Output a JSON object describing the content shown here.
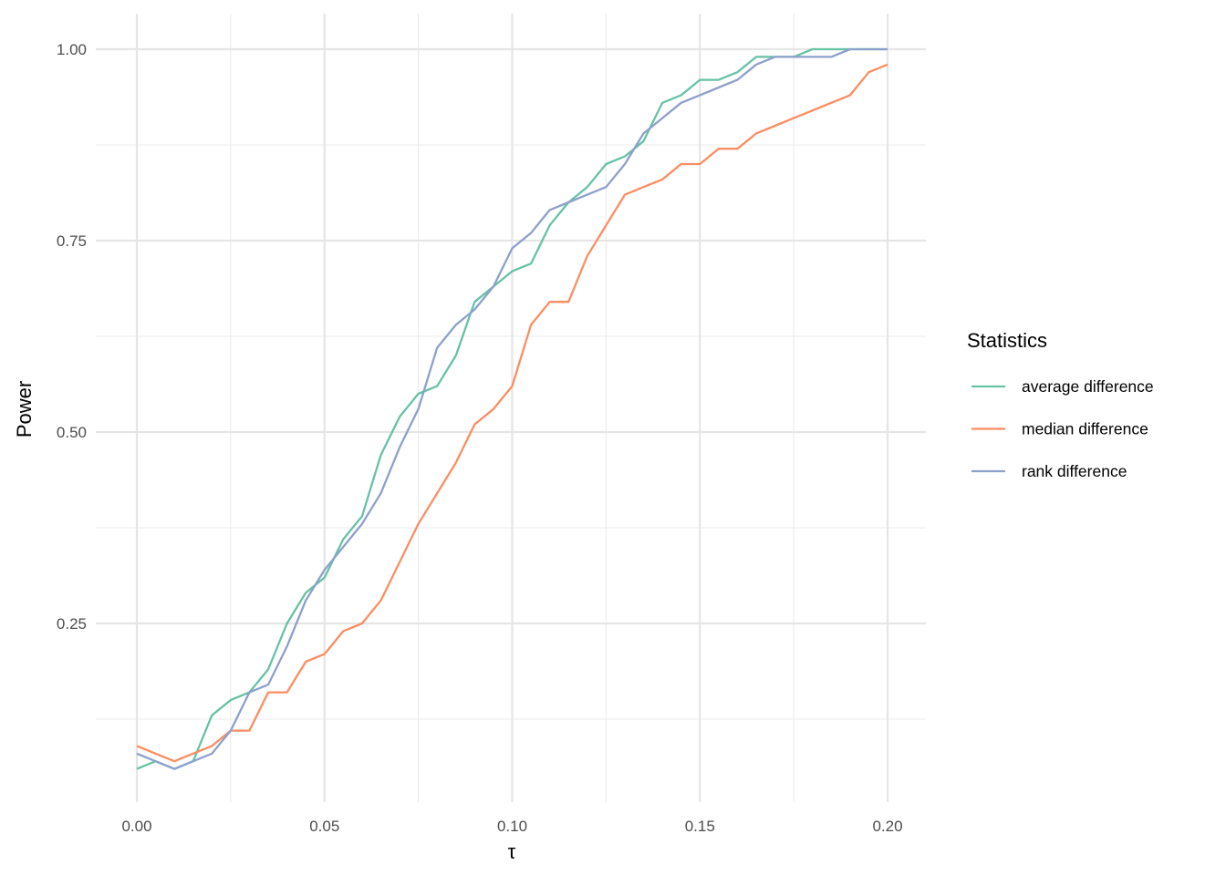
{
  "chart_data": {
    "type": "line",
    "title": "",
    "xlabel": "τ",
    "ylabel": "Power",
    "xlim": [
      -0.01,
      0.2075
    ],
    "ylim": [
      0.035,
      1.05
    ],
    "grid": true,
    "x_ticks": [
      0.0,
      0.05,
      0.1,
      0.15,
      0.2
    ],
    "x_tick_labels": [
      "0.00",
      "0.05",
      "0.10",
      "0.15",
      "0.20"
    ],
    "y_ticks": [
      0.25,
      0.5,
      0.75,
      1.0
    ],
    "y_tick_labels": [
      "0.25",
      "0.50",
      "0.75",
      "1.00"
    ],
    "legend": {
      "title": "Statistics",
      "position": "right"
    },
    "x": [
      0,
      0.005,
      0.01,
      0.015,
      0.02,
      0.025,
      0.03,
      0.035,
      0.04,
      0.045,
      0.05,
      0.055,
      0.06,
      0.065,
      0.07,
      0.075,
      0.08,
      0.085,
      0.09,
      0.095,
      0.1,
      0.105,
      0.11,
      0.115,
      0.12,
      0.125,
      0.13,
      0.135,
      0.14,
      0.145,
      0.15,
      0.155,
      0.16,
      0.165,
      0.17,
      0.175,
      0.18,
      0.185,
      0.19,
      0.195,
      0.2
    ],
    "series": [
      {
        "name": "average difference",
        "color": "#66c2a5",
        "values": [
          0.06,
          0.07,
          0.06,
          0.07,
          0.13,
          0.15,
          0.16,
          0.19,
          0.25,
          0.29,
          0.31,
          0.36,
          0.39,
          0.47,
          0.52,
          0.55,
          0.56,
          0.6,
          0.67,
          0.69,
          0.71,
          0.72,
          0.77,
          0.8,
          0.82,
          0.85,
          0.86,
          0.88,
          0.93,
          0.94,
          0.96,
          0.96,
          0.97,
          0.99,
          0.99,
          0.99,
          1.0,
          1.0,
          1.0,
          1.0,
          1.0
        ]
      },
      {
        "name": "median difference",
        "color": "#fc8d62",
        "values": [
          0.09,
          0.08,
          0.07,
          0.08,
          0.09,
          0.11,
          0.11,
          0.16,
          0.16,
          0.2,
          0.21,
          0.24,
          0.25,
          0.28,
          0.33,
          0.38,
          0.42,
          0.46,
          0.51,
          0.53,
          0.56,
          0.64,
          0.67,
          0.67,
          0.73,
          0.77,
          0.81,
          0.82,
          0.83,
          0.85,
          0.85,
          0.87,
          0.87,
          0.89,
          0.9,
          0.91,
          0.92,
          0.93,
          0.94,
          0.97,
          0.98
        ]
      },
      {
        "name": "rank difference",
        "color": "#8da0cb",
        "values": [
          0.08,
          0.07,
          0.06,
          0.07,
          0.08,
          0.11,
          0.16,
          0.17,
          0.22,
          0.28,
          0.32,
          0.35,
          0.38,
          0.42,
          0.48,
          0.53,
          0.61,
          0.64,
          0.66,
          0.69,
          0.74,
          0.76,
          0.79,
          0.8,
          0.81,
          0.82,
          0.85,
          0.89,
          0.91,
          0.93,
          0.94,
          0.95,
          0.96,
          0.98,
          0.99,
          0.99,
          0.99,
          0.99,
          1.0,
          1.0,
          1.0
        ]
      }
    ]
  }
}
